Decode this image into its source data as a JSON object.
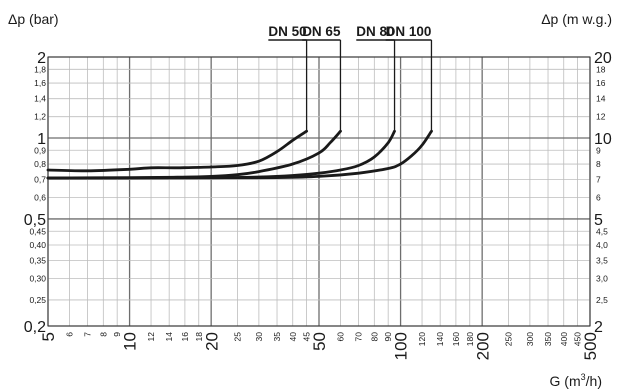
{
  "chart_data": {
    "type": "line",
    "xscale": "log",
    "yscale": "log",
    "xlim": [
      5,
      500
    ],
    "ylim": [
      0.2,
      2
    ],
    "left_axis": {
      "label": "Δp (bar)",
      "major_ticks": [
        {
          "value": 2,
          "label": "2"
        },
        {
          "value": 1,
          "label": "1"
        },
        {
          "value": 0.5,
          "label": "0,5"
        },
        {
          "value": 0.2,
          "label": "0,2"
        }
      ],
      "minor_ticks": [
        {
          "value": 1.8,
          "label": "1,8"
        },
        {
          "value": 1.6,
          "label": "1,6"
        },
        {
          "value": 1.4,
          "label": "1,4"
        },
        {
          "value": 1.2,
          "label": "1,2"
        },
        {
          "value": 0.9,
          "label": "0,9"
        },
        {
          "value": 0.8,
          "label": "0,8"
        },
        {
          "value": 0.7,
          "label": "0,7"
        },
        {
          "value": 0.6,
          "label": "0,6"
        },
        {
          "value": 0.45,
          "label": "0,45"
        },
        {
          "value": 0.4,
          "label": "0,40"
        },
        {
          "value": 0.35,
          "label": "0,35"
        },
        {
          "value": 0.3,
          "label": "0,30"
        },
        {
          "value": 0.25,
          "label": "0,25"
        }
      ]
    },
    "right_axis": {
      "label": "Δp (m w.g.)",
      "major_ticks": [
        {
          "value": 2,
          "label": "20"
        },
        {
          "value": 1,
          "label": "10"
        },
        {
          "value": 0.5,
          "label": "5"
        },
        {
          "value": 0.2,
          "label": "2"
        }
      ],
      "minor_ticks": [
        {
          "value": 1.8,
          "label": "18"
        },
        {
          "value": 1.6,
          "label": "16"
        },
        {
          "value": 1.4,
          "label": "14"
        },
        {
          "value": 1.2,
          "label": "12"
        },
        {
          "value": 0.9,
          "label": "9"
        },
        {
          "value": 0.8,
          "label": "8"
        },
        {
          "value": 0.7,
          "label": "7"
        },
        {
          "value": 0.6,
          "label": "6"
        },
        {
          "value": 0.45,
          "label": "4,5"
        },
        {
          "value": 0.4,
          "label": "4,0"
        },
        {
          "value": 0.35,
          "label": "3,5"
        },
        {
          "value": 0.3,
          "label": "3,0"
        },
        {
          "value": 0.25,
          "label": "2,5"
        }
      ]
    },
    "x_axis": {
      "label_main": "G (m",
      "label_sup": "3",
      "label_end": "/h)",
      "major_ticks": [
        {
          "value": 5,
          "label": "5"
        },
        {
          "value": 10,
          "label": "10"
        },
        {
          "value": 20,
          "label": "20"
        },
        {
          "value": 50,
          "label": "50"
        },
        {
          "value": 100,
          "label": "100"
        },
        {
          "value": 200,
          "label": "200"
        },
        {
          "value": 500,
          "label": "500"
        }
      ],
      "minor_ticks": [
        {
          "value": 6,
          "label": "6"
        },
        {
          "value": 7,
          "label": "7"
        },
        {
          "value": 8,
          "label": "8"
        },
        {
          "value": 9,
          "label": "9"
        },
        {
          "value": 12,
          "label": "12"
        },
        {
          "value": 14,
          "label": "14"
        },
        {
          "value": 16,
          "label": "16"
        },
        {
          "value": 18,
          "label": "18"
        },
        {
          "value": 25,
          "label": "25"
        },
        {
          "value": 30,
          "label": "30"
        },
        {
          "value": 35,
          "label": "35"
        },
        {
          "value": 40,
          "label": "40"
        },
        {
          "value": 45,
          "label": "45"
        },
        {
          "value": 60,
          "label": "60"
        },
        {
          "value": 70,
          "label": "70"
        },
        {
          "value": 80,
          "label": "80"
        },
        {
          "value": 90,
          "label": "90"
        },
        {
          "value": 120,
          "label": "120"
        },
        {
          "value": 140,
          "label": "140"
        },
        {
          "value": 160,
          "label": "160"
        },
        {
          "value": 180,
          "label": "180"
        },
        {
          "value": 250,
          "label": "250"
        },
        {
          "value": 300,
          "label": "300"
        },
        {
          "value": 350,
          "label": "350"
        },
        {
          "value": 400,
          "label": "400"
        },
        {
          "value": 450,
          "label": "450"
        }
      ]
    },
    "grid": true,
    "series": [
      {
        "name": "DN 50",
        "color": "#1a1a1a",
        "points": [
          [
            5,
            0.76
          ],
          [
            7,
            0.755
          ],
          [
            10,
            0.765
          ],
          [
            12,
            0.775
          ],
          [
            15,
            0.775
          ],
          [
            20,
            0.78
          ],
          [
            25,
            0.79
          ],
          [
            30,
            0.82
          ],
          [
            35,
            0.89
          ],
          [
            40,
            0.98
          ],
          [
            45,
            1.06
          ]
        ]
      },
      {
        "name": "DN 65",
        "color": "#1a1a1a",
        "points": [
          [
            5,
            0.71
          ],
          [
            10,
            0.712
          ],
          [
            15,
            0.715
          ],
          [
            20,
            0.72
          ],
          [
            25,
            0.73
          ],
          [
            30,
            0.75
          ],
          [
            40,
            0.8
          ],
          [
            50,
            0.88
          ],
          [
            55,
            0.96
          ],
          [
            60,
            1.06
          ]
        ]
      },
      {
        "name": "DN 80",
        "color": "#1a1a1a",
        "points": [
          [
            5,
            0.71
          ],
          [
            20,
            0.712
          ],
          [
            30,
            0.716
          ],
          [
            40,
            0.725
          ],
          [
            50,
            0.74
          ],
          [
            60,
            0.76
          ],
          [
            70,
            0.79
          ],
          [
            80,
            0.85
          ],
          [
            90,
            0.96
          ],
          [
            95,
            1.06
          ]
        ]
      },
      {
        "name": "DN 100",
        "color": "#1a1a1a",
        "points": [
          [
            5,
            0.71
          ],
          [
            30,
            0.712
          ],
          [
            50,
            0.72
          ],
          [
            70,
            0.74
          ],
          [
            90,
            0.77
          ],
          [
            100,
            0.8
          ],
          [
            110,
            0.86
          ],
          [
            120,
            0.94
          ],
          [
            130,
            1.06
          ]
        ]
      }
    ]
  }
}
